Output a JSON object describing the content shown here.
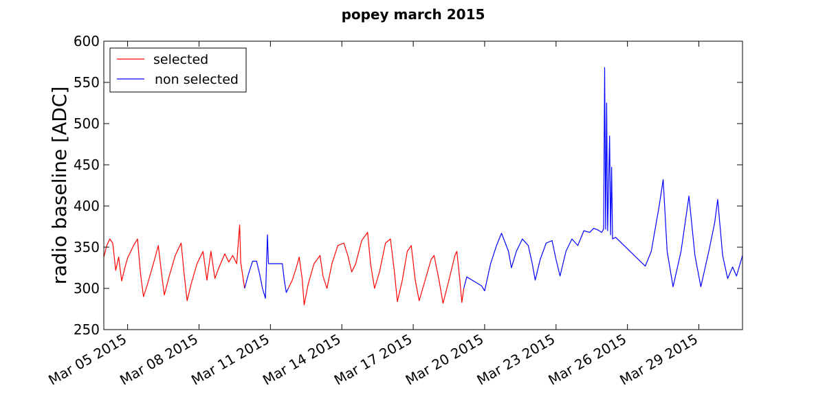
{
  "chart_data": {
    "type": "line",
    "title": "popey march 2015",
    "xlabel": "",
    "ylabel": "radio baseline [ADC]",
    "ylim": [
      250,
      600
    ],
    "xlim": [
      "2015-03-04",
      "2015-03-30 20:00"
    ],
    "grid": false,
    "legend_position": "top-left",
    "y_ticks": [
      250,
      300,
      350,
      400,
      450,
      500,
      550,
      600
    ],
    "x_ticks": [
      {
        "date": "2015-03-05",
        "label": "Mar 05 2015"
      },
      {
        "date": "2015-03-08",
        "label": "Mar 08 2015"
      },
      {
        "date": "2015-03-11",
        "label": "Mar 11 2015"
      },
      {
        "date": "2015-03-14",
        "label": "Mar 14 2015"
      },
      {
        "date": "2015-03-17",
        "label": "Mar 17 2015"
      },
      {
        "date": "2015-03-20",
        "label": "Mar 20 2015"
      },
      {
        "date": "2015-03-23",
        "label": "Mar 23 2015"
      },
      {
        "date": "2015-03-26",
        "label": "Mar 26 2015"
      },
      {
        "date": "2015-03-29",
        "label": "Mar 29 2015"
      }
    ],
    "series": [
      {
        "name": "selected",
        "color": "#ff0000",
        "segments": [
          [
            [
              "2015-03-04 00:00",
              338
            ],
            [
              "2015-03-04 03:00",
              352
            ],
            [
              "2015-03-04 06:00",
              360
            ],
            [
              "2015-03-04 09:00",
              355
            ],
            [
              "2015-03-04 12:00",
              322
            ],
            [
              "2015-03-04 15:00",
              338
            ],
            [
              "2015-03-04 18:00",
              309
            ],
            [
              "2015-03-04 21:00",
              324
            ],
            [
              "2015-03-05 00:00",
              337
            ],
            [
              "2015-03-05 06:00",
              352
            ],
            [
              "2015-03-05 10:00",
              360
            ],
            [
              "2015-03-05 13:00",
              318
            ],
            [
              "2015-03-05 16:00",
              290
            ],
            [
              "2015-03-05 20:00",
              305
            ],
            [
              "2015-03-06 02:00",
              330
            ],
            [
              "2015-03-06 07:00",
              352
            ],
            [
              "2015-03-06 10:00",
              320
            ],
            [
              "2015-03-06 13:00",
              292
            ],
            [
              "2015-03-06 18:00",
              315
            ],
            [
              "2015-03-07 00:00",
              340
            ],
            [
              "2015-03-07 06:00",
              355
            ],
            [
              "2015-03-07 09:00",
              318
            ],
            [
              "2015-03-07 12:00",
              285
            ],
            [
              "2015-03-07 16:00",
              305
            ],
            [
              "2015-03-07 22:00",
              330
            ],
            [
              "2015-03-08 04:00",
              345
            ],
            [
              "2015-03-08 08:00",
              310
            ],
            [
              "2015-03-08 12:00",
              345
            ],
            [
              "2015-03-08 16:00",
              312
            ],
            [
              "2015-03-08 20:00",
              325
            ],
            [
              "2015-03-09 02:00",
              342
            ],
            [
              "2015-03-09 06:00",
              332
            ],
            [
              "2015-03-09 10:00",
              340
            ],
            [
              "2015-03-09 14:00",
              330
            ],
            [
              "2015-03-09 17:00",
              377
            ],
            [
              "2015-03-09 18:00",
              332
            ],
            [
              "2015-03-09 22:00",
              300
            ]
          ],
          [
            [
              "2015-03-11 18:00",
              300
            ],
            [
              "2015-03-11 22:00",
              310
            ],
            [
              "2015-03-12 02:00",
              325
            ],
            [
              "2015-03-12 05:00",
              338
            ],
            [
              "2015-03-12 08:00",
              312
            ],
            [
              "2015-03-12 10:00",
              280
            ],
            [
              "2015-03-12 14:00",
              305
            ],
            [
              "2015-03-12 20:00",
              330
            ],
            [
              "2015-03-13 02:00",
              340
            ],
            [
              "2015-03-13 05:00",
              315
            ],
            [
              "2015-03-13 09:00",
              300
            ],
            [
              "2015-03-13 14:00",
              330
            ],
            [
              "2015-03-13 20:00",
              352
            ],
            [
              "2015-03-14 02:00",
              355
            ],
            [
              "2015-03-14 06:00",
              340
            ],
            [
              "2015-03-14 10:00",
              320
            ],
            [
              "2015-03-14 14:00",
              330
            ],
            [
              "2015-03-14 20:00",
              358
            ],
            [
              "2015-03-15 02:00",
              368
            ],
            [
              "2015-03-15 05:00",
              330
            ],
            [
              "2015-03-15 09:00",
              300
            ],
            [
              "2015-03-15 14:00",
              320
            ],
            [
              "2015-03-15 20:00",
              355
            ],
            [
              "2015-03-16 01:00",
              360
            ],
            [
              "2015-03-16 05:00",
              320
            ],
            [
              "2015-03-16 08:00",
              284
            ],
            [
              "2015-03-16 13:00",
              310
            ],
            [
              "2015-03-16 18:00",
              345
            ],
            [
              "2015-03-16 22:00",
              352
            ],
            [
              "2015-03-17 02:00",
              310
            ],
            [
              "2015-03-17 06:00",
              285
            ],
            [
              "2015-03-17 12:00",
              310
            ],
            [
              "2015-03-17 18:00",
              335
            ],
            [
              "2015-03-17 21:00",
              340
            ],
            [
              "2015-03-18 02:00",
              310
            ],
            [
              "2015-03-18 06:00",
              282
            ],
            [
              "2015-03-18 12:00",
              310
            ],
            [
              "2015-03-18 18:00",
              340
            ],
            [
              "2015-03-18 20:00",
              345
            ],
            [
              "2015-03-18 23:00",
              310
            ],
            [
              "2015-03-19 01:00",
              283
            ],
            [
              "2015-03-19 03:00",
              300
            ]
          ]
        ]
      },
      {
        "name": "non selected",
        "color": "#0000ff",
        "segments": [
          [
            [
              "2015-03-09 22:00",
              300
            ],
            [
              "2015-03-10 02:00",
              318
            ],
            [
              "2015-03-10 06:00",
              333
            ],
            [
              "2015-03-10 10:00",
              333
            ],
            [
              "2015-03-10 13:00",
              318
            ],
            [
              "2015-03-10 16:00",
              300
            ],
            [
              "2015-03-10 19:00",
              288
            ],
            [
              "2015-03-10 21:00",
              365
            ],
            [
              "2015-03-10 22:00",
              330
            ],
            [
              "2015-03-11 12:00",
              330
            ],
            [
              "2015-03-11 14:00",
              310
            ],
            [
              "2015-03-11 16:00",
              295
            ],
            [
              "2015-03-11 18:00",
              300
            ]
          ],
          [
            [
              "2015-03-19 03:00",
              300
            ],
            [
              "2015-03-19 06:00",
              314
            ],
            [
              "2015-03-19 21:00",
              303
            ],
            [
              "2015-03-20 00:00",
              297
            ],
            [
              "2015-03-20 06:00",
              330
            ],
            [
              "2015-03-20 12:00",
              352
            ],
            [
              "2015-03-20 17:00",
              367
            ],
            [
              "2015-03-21 00:00",
              345
            ],
            [
              "2015-03-21 03:00",
              325
            ],
            [
              "2015-03-21 08:00",
              345
            ],
            [
              "2015-03-21 14:00",
              360
            ],
            [
              "2015-03-21 20:00",
              352
            ],
            [
              "2015-03-22 00:00",
              330
            ],
            [
              "2015-03-22 03:00",
              310
            ],
            [
              "2015-03-22 08:00",
              335
            ],
            [
              "2015-03-22 14:00",
              355
            ],
            [
              "2015-03-22 20:00",
              358
            ],
            [
              "2015-03-23 00:00",
              335
            ],
            [
              "2015-03-23 04:00",
              315
            ],
            [
              "2015-03-23 10:00",
              345
            ],
            [
              "2015-03-23 16:00",
              360
            ],
            [
              "2015-03-23 22:00",
              352
            ],
            [
              "2015-03-24 04:00",
              370
            ],
            [
              "2015-03-24 10:00",
              368
            ],
            [
              "2015-03-24 14:00",
              373
            ],
            [
              "2015-03-24 18:00",
              371
            ],
            [
              "2015-03-24 22:00",
              368
            ],
            [
              "2015-03-25 00:00",
              372
            ],
            [
              "2015-03-25 01:00",
              568
            ],
            [
              "2015-03-25 02:00",
              372
            ],
            [
              "2015-03-25 03:00",
              525
            ],
            [
              "2015-03-25 04:00",
              370
            ],
            [
              "2015-03-25 06:00",
              485
            ],
            [
              "2015-03-25 07:00",
              365
            ],
            [
              "2015-03-25 08:00",
              447
            ],
            [
              "2015-03-25 09:00",
              360
            ],
            [
              "2015-03-25 12:00",
              362
            ],
            [
              "2015-03-26 18:00",
              327
            ],
            [
              "2015-03-27 00:00",
              345
            ],
            [
              "2015-03-27 08:00",
              400
            ],
            [
              "2015-03-27 12:00",
              432
            ],
            [
              "2015-03-27 16:00",
              345
            ],
            [
              "2015-03-27 22:00",
              302
            ],
            [
              "2015-03-28 06:00",
              345
            ],
            [
              "2015-03-28 12:00",
              395
            ],
            [
              "2015-03-28 14:00",
              412
            ],
            [
              "2015-03-28 20:00",
              340
            ],
            [
              "2015-03-29 02:00",
              302
            ],
            [
              "2015-03-29 10:00",
              345
            ],
            [
              "2015-03-29 16:00",
              380
            ],
            [
              "2015-03-29 19:00",
              408
            ],
            [
              "2015-03-30 00:00",
              340
            ],
            [
              "2015-03-30 05:00",
              312
            ],
            [
              "2015-03-30 10:00",
              326
            ],
            [
              "2015-03-30 14:00",
              315
            ],
            [
              "2015-03-30 20:00",
              340
            ]
          ]
        ]
      }
    ]
  }
}
